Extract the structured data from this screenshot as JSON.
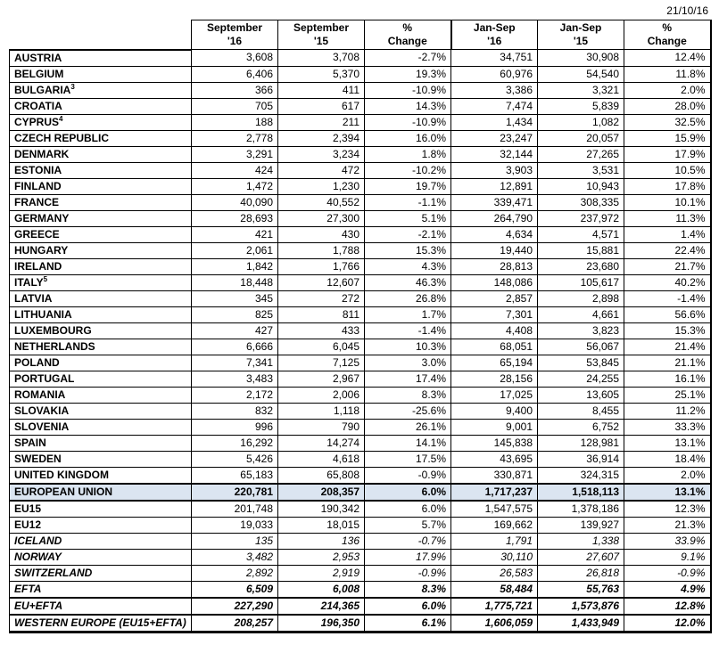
{
  "date": "21/10/16",
  "colors": {
    "eu_row_highlight": "#dbe5f1",
    "border": "#000000",
    "text": "#000000"
  },
  "table": {
    "columns": [
      {
        "line1": "September",
        "line2": "'16"
      },
      {
        "line1": "September",
        "line2": "'15"
      },
      {
        "line1": "%",
        "line2": "Change"
      },
      {
        "line1": "Jan-Sep",
        "line2": "'16"
      },
      {
        "line1": "Jan-Sep",
        "line2": "'15"
      },
      {
        "line1": "%",
        "line2": "Change"
      }
    ],
    "rows": [
      {
        "label": "AUSTRIA",
        "sup": "",
        "style": "country",
        "values": [
          "3,608",
          "3,708",
          "-2.7%",
          "34,751",
          "30,908",
          "12.4%"
        ]
      },
      {
        "label": "BELGIUM",
        "sup": "",
        "style": "country",
        "values": [
          "6,406",
          "5,370",
          "19.3%",
          "60,976",
          "54,540",
          "11.8%"
        ]
      },
      {
        "label": "BULGARIA",
        "sup": "3",
        "style": "country",
        "values": [
          "366",
          "411",
          "-10.9%",
          "3,386",
          "3,321",
          "2.0%"
        ]
      },
      {
        "label": "CROATIA",
        "sup": "",
        "style": "country",
        "values": [
          "705",
          "617",
          "14.3%",
          "7,474",
          "5,839",
          "28.0%"
        ]
      },
      {
        "label": "CYPRUS",
        "sup": "4",
        "style": "country",
        "values": [
          "188",
          "211",
          "-10.9%",
          "1,434",
          "1,082",
          "32.5%"
        ]
      },
      {
        "label": "CZECH REPUBLIC",
        "sup": "",
        "style": "country",
        "values": [
          "2,778",
          "2,394",
          "16.0%",
          "23,247",
          "20,057",
          "15.9%"
        ]
      },
      {
        "label": "DENMARK",
        "sup": "",
        "style": "country",
        "values": [
          "3,291",
          "3,234",
          "1.8%",
          "32,144",
          "27,265",
          "17.9%"
        ]
      },
      {
        "label": "ESTONIA",
        "sup": "",
        "style": "country",
        "values": [
          "424",
          "472",
          "-10.2%",
          "3,903",
          "3,531",
          "10.5%"
        ]
      },
      {
        "label": "FINLAND",
        "sup": "",
        "style": "country",
        "values": [
          "1,472",
          "1,230",
          "19.7%",
          "12,891",
          "10,943",
          "17.8%"
        ]
      },
      {
        "label": "FRANCE",
        "sup": "",
        "style": "country",
        "values": [
          "40,090",
          "40,552",
          "-1.1%",
          "339,471",
          "308,335",
          "10.1%"
        ]
      },
      {
        "label": "GERMANY",
        "sup": "",
        "style": "country",
        "values": [
          "28,693",
          "27,300",
          "5.1%",
          "264,790",
          "237,972",
          "11.3%"
        ]
      },
      {
        "label": "GREECE",
        "sup": "",
        "style": "country",
        "values": [
          "421",
          "430",
          "-2.1%",
          "4,634",
          "4,571",
          "1.4%"
        ]
      },
      {
        "label": "HUNGARY",
        "sup": "",
        "style": "country",
        "values": [
          "2,061",
          "1,788",
          "15.3%",
          "19,440",
          "15,881",
          "22.4%"
        ]
      },
      {
        "label": "IRELAND",
        "sup": "",
        "style": "country",
        "values": [
          "1,842",
          "1,766",
          "4.3%",
          "28,813",
          "23,680",
          "21.7%"
        ]
      },
      {
        "label": "ITALY",
        "sup": "5",
        "style": "country",
        "values": [
          "18,448",
          "12,607",
          "46.3%",
          "148,086",
          "105,617",
          "40.2%"
        ]
      },
      {
        "label": "LATVIA",
        "sup": "",
        "style": "country",
        "values": [
          "345",
          "272",
          "26.8%",
          "2,857",
          "2,898",
          "-1.4%"
        ]
      },
      {
        "label": "LITHUANIA",
        "sup": "",
        "style": "country",
        "values": [
          "825",
          "811",
          "1.7%",
          "7,301",
          "4,661",
          "56.6%"
        ]
      },
      {
        "label": "LUXEMBOURG",
        "sup": "",
        "style": "country",
        "values": [
          "427",
          "433",
          "-1.4%",
          "4,408",
          "3,823",
          "15.3%"
        ]
      },
      {
        "label": "NETHERLANDS",
        "sup": "",
        "style": "country",
        "values": [
          "6,666",
          "6,045",
          "10.3%",
          "68,051",
          "56,067",
          "21.4%"
        ]
      },
      {
        "label": "POLAND",
        "sup": "",
        "style": "country",
        "values": [
          "7,341",
          "7,125",
          "3.0%",
          "65,194",
          "53,845",
          "21.1%"
        ]
      },
      {
        "label": "PORTUGAL",
        "sup": "",
        "style": "country",
        "values": [
          "3,483",
          "2,967",
          "17.4%",
          "28,156",
          "24,255",
          "16.1%"
        ]
      },
      {
        "label": "ROMANIA",
        "sup": "",
        "style": "country",
        "values": [
          "2,172",
          "2,006",
          "8.3%",
          "17,025",
          "13,605",
          "25.1%"
        ]
      },
      {
        "label": "SLOVAKIA",
        "sup": "",
        "style": "country",
        "values": [
          "832",
          "1,118",
          "-25.6%",
          "9,400",
          "8,455",
          "11.2%"
        ]
      },
      {
        "label": "SLOVENIA",
        "sup": "",
        "style": "country",
        "values": [
          "996",
          "790",
          "26.1%",
          "9,001",
          "6,752",
          "33.3%"
        ]
      },
      {
        "label": "SPAIN",
        "sup": "",
        "style": "country",
        "values": [
          "16,292",
          "14,274",
          "14.1%",
          "145,838",
          "128,981",
          "13.1%"
        ]
      },
      {
        "label": "SWEDEN",
        "sup": "",
        "style": "country",
        "values": [
          "5,426",
          "4,618",
          "17.5%",
          "43,695",
          "36,914",
          "18.4%"
        ]
      },
      {
        "label": "UNITED KINGDOM",
        "sup": "",
        "style": "country",
        "values": [
          "65,183",
          "65,808",
          "-0.9%",
          "330,871",
          "324,315",
          "2.0%"
        ]
      },
      {
        "label": "EUROPEAN UNION",
        "sup": "",
        "style": "eu-total",
        "values": [
          "220,781",
          "208,357",
          "6.0%",
          "1,717,237",
          "1,518,113",
          "13.1%"
        ]
      },
      {
        "label": "EU15",
        "sup": "",
        "style": "subtotal",
        "values": [
          "201,748",
          "190,342",
          "6.0%",
          "1,547,575",
          "1,378,186",
          "12.3%"
        ]
      },
      {
        "label": "EU12",
        "sup": "",
        "style": "subtotal",
        "values": [
          "19,033",
          "18,015",
          "5.7%",
          "169,662",
          "139,927",
          "21.3%"
        ]
      },
      {
        "label": "ICELAND",
        "sup": "",
        "style": "efta-country",
        "values": [
          "135",
          "136",
          "-0.7%",
          "1,791",
          "1,338",
          "33.9%"
        ]
      },
      {
        "label": "NORWAY",
        "sup": "",
        "style": "efta-country",
        "values": [
          "3,482",
          "2,953",
          "17.9%",
          "30,110",
          "27,607",
          "9.1%"
        ]
      },
      {
        "label": "SWITZERLAND",
        "sup": "",
        "style": "efta-country",
        "values": [
          "2,892",
          "2,919",
          "-0.9%",
          "26,583",
          "26,818",
          "-0.9%"
        ]
      },
      {
        "label": "EFTA",
        "sup": "",
        "style": "efta-total",
        "values": [
          "6,509",
          "6,008",
          "8.3%",
          "58,484",
          "55,763",
          "4.9%"
        ]
      },
      {
        "label": "EU+EFTA",
        "sup": "",
        "style": "total",
        "values": [
          "227,290",
          "214,365",
          "6.0%",
          "1,775,721",
          "1,573,876",
          "12.8%"
        ]
      },
      {
        "label": "WESTERN EUROPE (EU15+EFTA)",
        "sup": "",
        "style": "total",
        "values": [
          "208,257",
          "196,350",
          "6.1%",
          "1,606,059",
          "1,433,949",
          "12.0%"
        ]
      }
    ]
  }
}
